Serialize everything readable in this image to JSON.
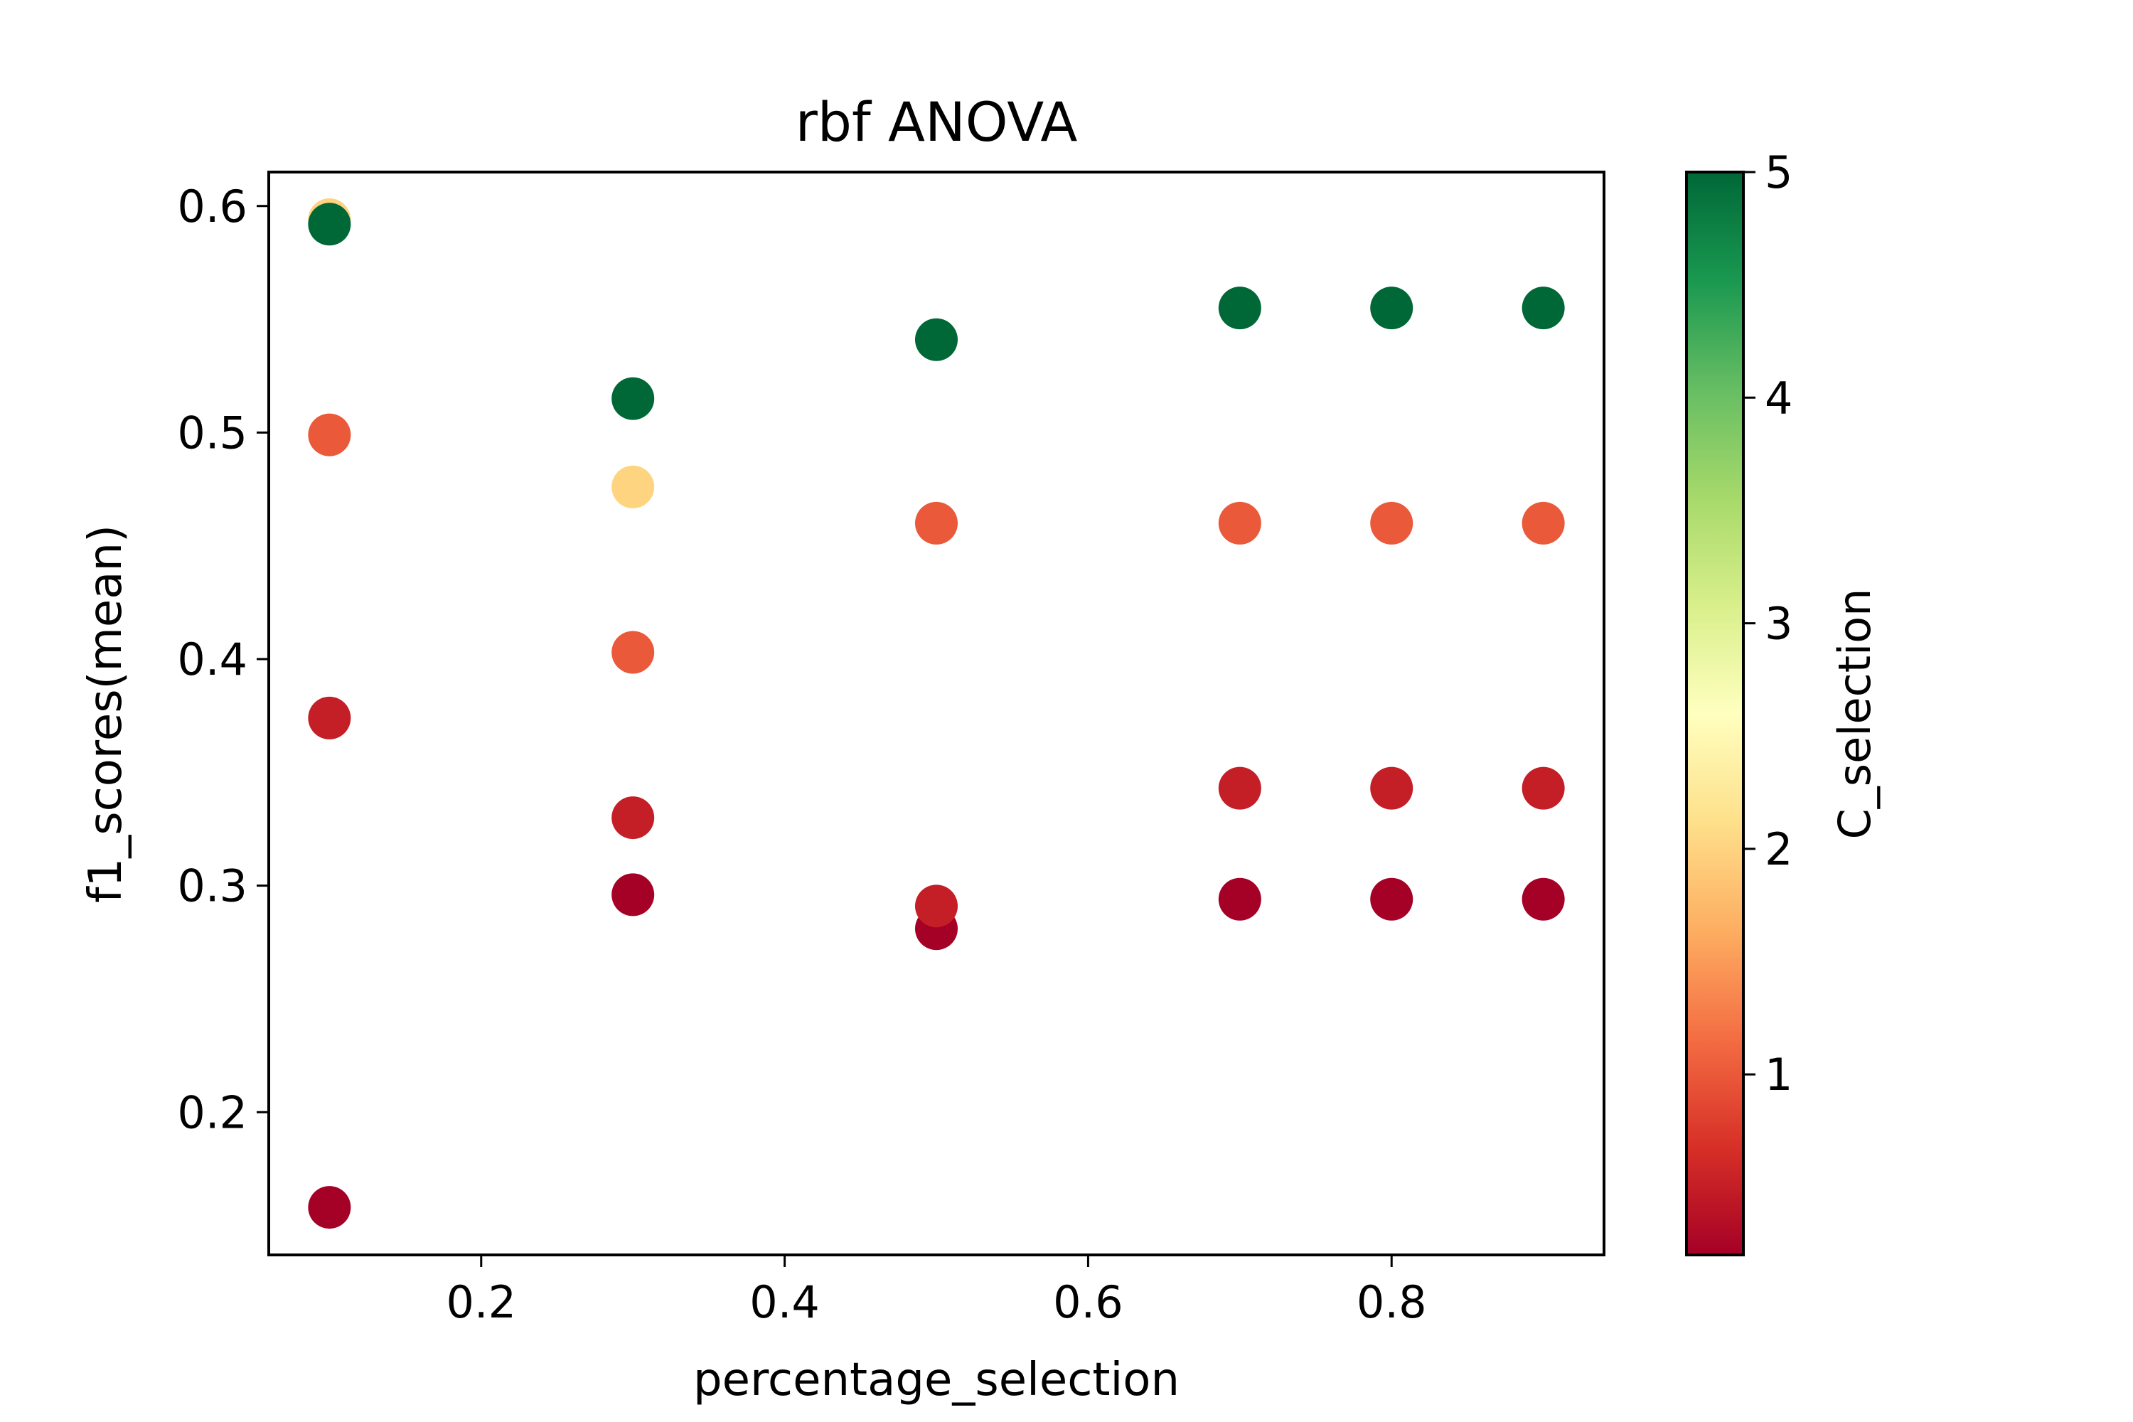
{
  "chart_data": {
    "type": "scatter",
    "title": "rbf ANOVA",
    "xlabel": "percentage_selection",
    "ylabel": "f1_scores(mean)",
    "xlim": [
      0.06,
      0.94
    ],
    "ylim": [
      0.137,
      0.615
    ],
    "xticks": [
      "0.2",
      "0.4",
      "0.6",
      "0.8"
    ],
    "yticks": [
      "0.2",
      "0.3",
      "0.4",
      "0.5",
      "0.6"
    ],
    "grid": false,
    "colormap": "RdYlGn",
    "colorbar": {
      "label": "C_selection",
      "range": [
        0.2,
        5
      ],
      "ticks": [
        "1",
        "2",
        "3",
        "4",
        "5"
      ]
    },
    "points": [
      {
        "x": 0.1,
        "y": 0.594,
        "c": 2
      },
      {
        "x": 0.1,
        "y": 0.592,
        "c": 5
      },
      {
        "x": 0.1,
        "y": 0.499,
        "c": 1
      },
      {
        "x": 0.1,
        "y": 0.374,
        "c": 0.5
      },
      {
        "x": 0.1,
        "y": 0.158,
        "c": 0.2
      },
      {
        "x": 0.3,
        "y": 0.515,
        "c": 5
      },
      {
        "x": 0.3,
        "y": 0.476,
        "c": 2
      },
      {
        "x": 0.3,
        "y": 0.403,
        "c": 1
      },
      {
        "x": 0.3,
        "y": 0.33,
        "c": 0.5
      },
      {
        "x": 0.3,
        "y": 0.296,
        "c": 0.2
      },
      {
        "x": 0.5,
        "y": 0.541,
        "c": 5
      },
      {
        "x": 0.5,
        "y": 0.46,
        "c": 1
      },
      {
        "x": 0.5,
        "y": 0.281,
        "c": 0.2
      },
      {
        "x": 0.5,
        "y": 0.291,
        "c": 0.5
      },
      {
        "x": 0.7,
        "y": 0.555,
        "c": 5
      },
      {
        "x": 0.7,
        "y": 0.46,
        "c": 1
      },
      {
        "x": 0.7,
        "y": 0.343,
        "c": 0.5
      },
      {
        "x": 0.7,
        "y": 0.294,
        "c": 0.2
      },
      {
        "x": 0.8,
        "y": 0.555,
        "c": 5
      },
      {
        "x": 0.8,
        "y": 0.46,
        "c": 1
      },
      {
        "x": 0.8,
        "y": 0.343,
        "c": 0.5
      },
      {
        "x": 0.8,
        "y": 0.294,
        "c": 0.2
      },
      {
        "x": 0.9,
        "y": 0.555,
        "c": 5
      },
      {
        "x": 0.9,
        "y": 0.46,
        "c": 1
      },
      {
        "x": 0.9,
        "y": 0.343,
        "c": 0.5
      },
      {
        "x": 0.9,
        "y": 0.294,
        "c": 0.2
      }
    ]
  }
}
